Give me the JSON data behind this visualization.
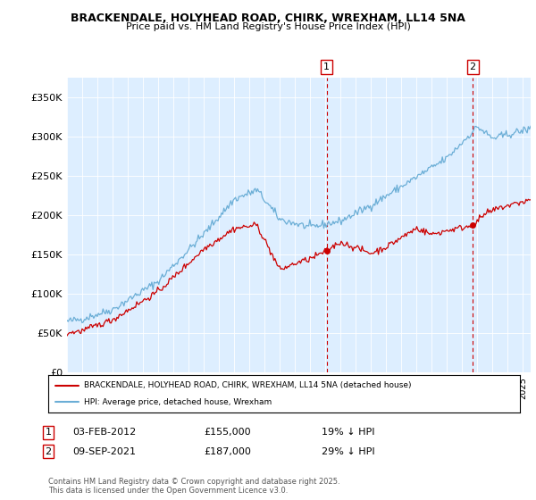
{
  "title1": "BRACKENDALE, HOLYHEAD ROAD, CHIRK, WREXHAM, LL14 5NA",
  "title2": "Price paid vs. HM Land Registry's House Price Index (HPI)",
  "ylim": [
    0,
    375000
  ],
  "yticks": [
    0,
    50000,
    100000,
    150000,
    200000,
    250000,
    300000,
    350000
  ],
  "ytick_labels": [
    "£0",
    "£50K",
    "£100K",
    "£150K",
    "£200K",
    "£250K",
    "£300K",
    "£350K"
  ],
  "plot_bg": "#ddeeff",
  "hpi_color": "#6baed6",
  "price_color": "#cc0000",
  "marker1_year": 2012.08,
  "marker1_value": 155000,
  "marker2_year": 2021.69,
  "marker2_value": 187000,
  "legend_label1": "BRACKENDALE, HOLYHEAD ROAD, CHIRK, WREXHAM, LL14 5NA (detached house)",
  "legend_label2": "HPI: Average price, detached house, Wrexham",
  "note1_date": "03-FEB-2012",
  "note1_price": "£155,000",
  "note1_hpi": "19% ↓ HPI",
  "note2_date": "09-SEP-2021",
  "note2_price": "£187,000",
  "note2_hpi": "29% ↓ HPI",
  "footer": "Contains HM Land Registry data © Crown copyright and database right 2025.\nThis data is licensed under the Open Government Licence v3.0."
}
